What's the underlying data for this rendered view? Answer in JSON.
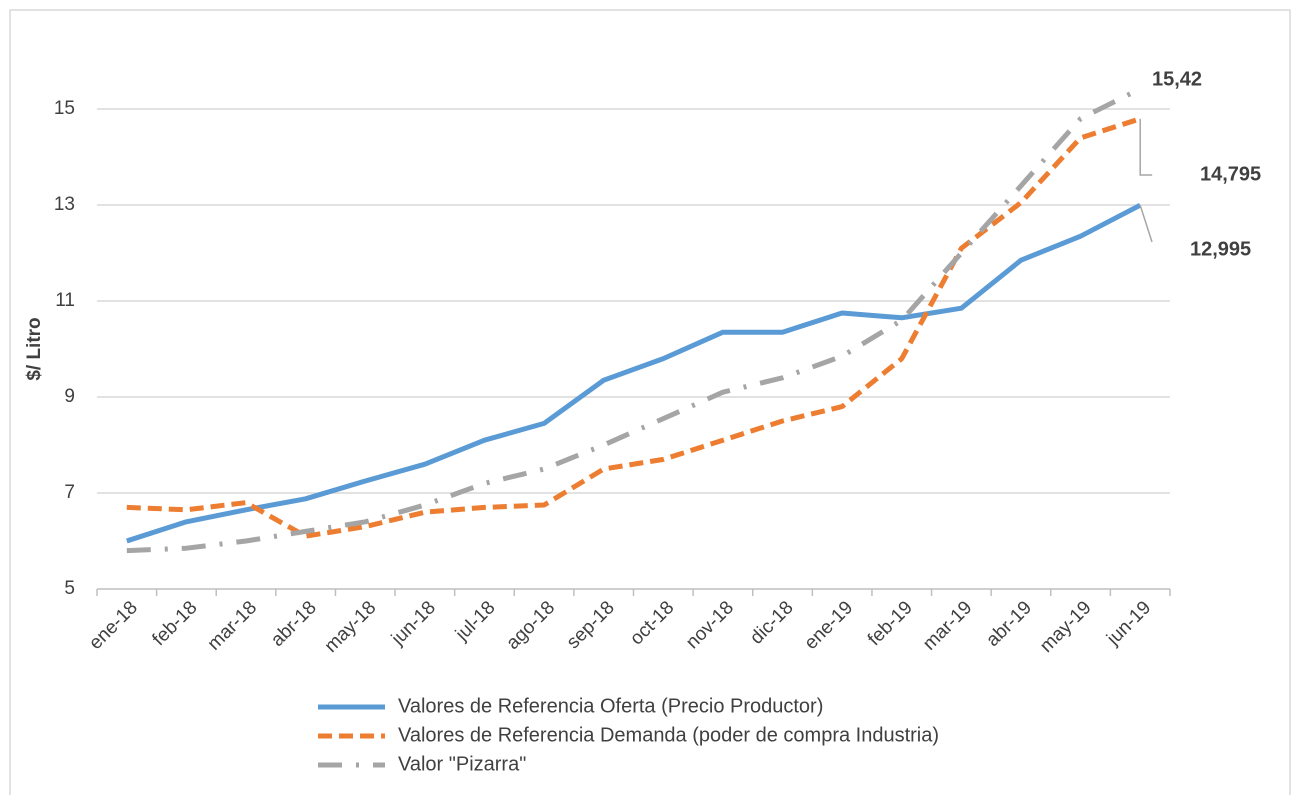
{
  "chart_data": {
    "type": "line",
    "y_label": "$/ Litro",
    "categories": [
      "ene-18",
      "feb-18",
      "mar-18",
      "abr-18",
      "may-18",
      "jun-18",
      "jul-18",
      "ago-18",
      "sep-18",
      "oct-18",
      "nov-18",
      "dic-18",
      "ene-19",
      "feb-19",
      "mar-19",
      "abr-19",
      "may-19",
      "jun-19"
    ],
    "series": [
      {
        "name": "Valores de Referencia Oferta  (Precio Productor)",
        "color": "#5b9bd5",
        "dash": "solid",
        "values": [
          6.0,
          6.4,
          6.65,
          6.88,
          7.25,
          7.6,
          8.1,
          8.45,
          9.35,
          9.8,
          10.35,
          10.35,
          10.75,
          10.65,
          10.85,
          11.85,
          12.35,
          12.995
        ],
        "value_labels": [
          null,
          null,
          null,
          null,
          null,
          null,
          null,
          null,
          null,
          null,
          null,
          null,
          null,
          null,
          null,
          null,
          null,
          "12,995"
        ]
      },
      {
        "name": "Valores de Referencia Demanda (poder de compra Industria)",
        "color": "#ed7d31",
        "dash": "dashed",
        "values": [
          6.7,
          6.65,
          6.8,
          6.1,
          6.3,
          6.6,
          6.7,
          6.75,
          7.5,
          7.7,
          8.1,
          8.5,
          8.8,
          9.8,
          12.1,
          13.05,
          14.4,
          14.795
        ],
        "value_labels": [
          null,
          null,
          null,
          null,
          null,
          null,
          null,
          null,
          null,
          null,
          null,
          null,
          null,
          null,
          null,
          null,
          null,
          "14,795"
        ]
      },
      {
        "name": "Valor \"Pizarra\"",
        "color": "#a5a5a5",
        "dash": "dashdot",
        "values": [
          5.8,
          5.85,
          6.0,
          6.2,
          6.4,
          6.75,
          7.2,
          7.5,
          8.0,
          8.55,
          9.1,
          9.4,
          9.85,
          10.6,
          12.0,
          13.4,
          14.8,
          15.42
        ],
        "value_labels": [
          null,
          null,
          null,
          null,
          null,
          null,
          null,
          null,
          null,
          null,
          null,
          null,
          null,
          null,
          null,
          null,
          null,
          "15,42"
        ]
      }
    ],
    "ylim": [
      5,
      16.5
    ],
    "yticks": [
      5,
      7,
      9,
      11,
      13,
      15
    ],
    "grid": true,
    "legend": "bottom"
  }
}
